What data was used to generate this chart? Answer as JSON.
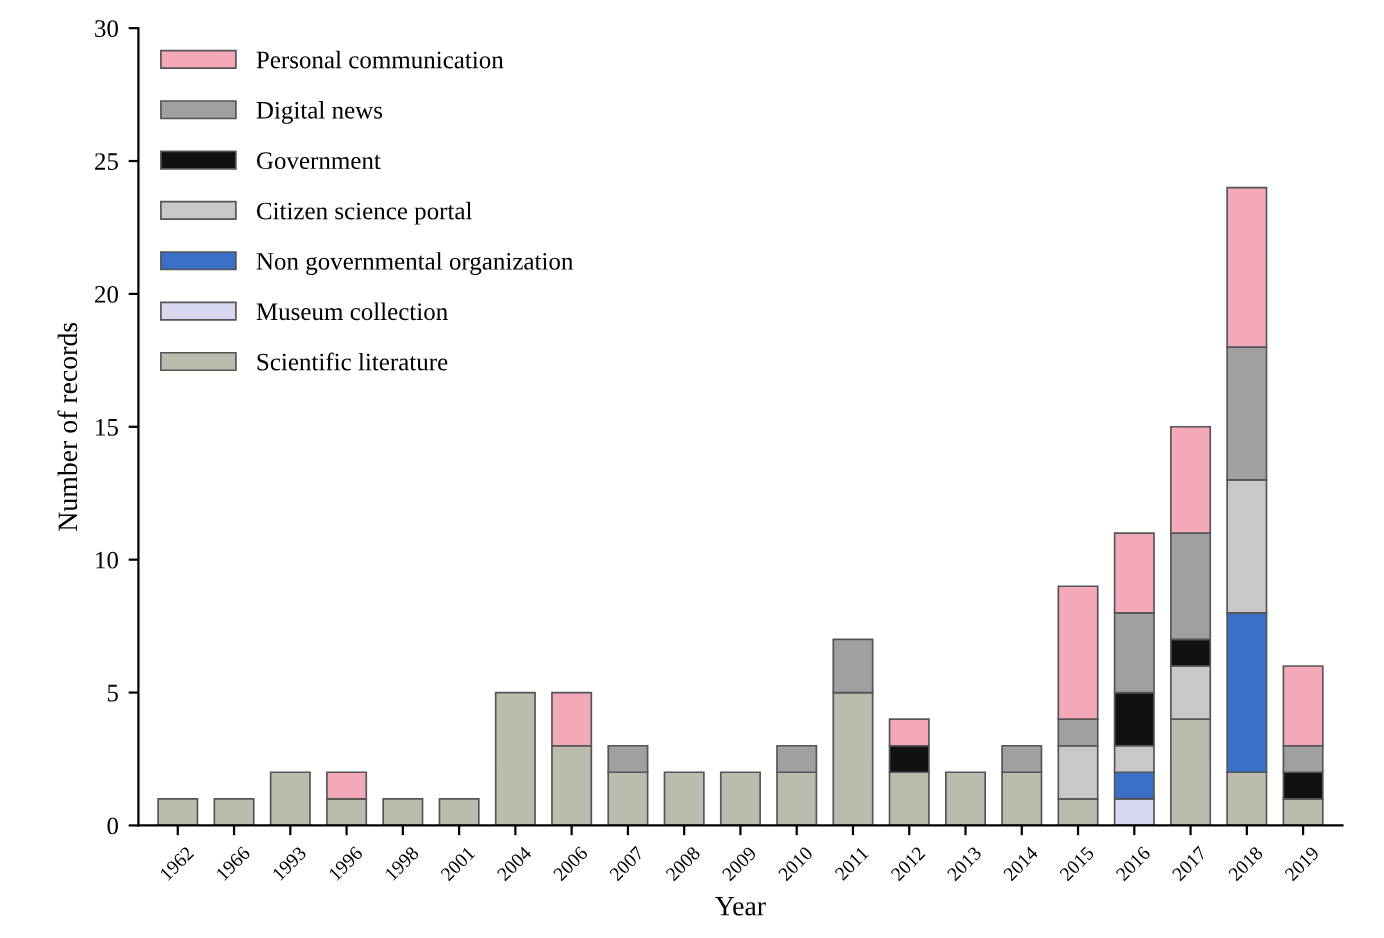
{
  "chart_data": {
    "type": "bar",
    "stacked": true,
    "xlabel": "Year",
    "ylabel": "Number of records",
    "categories": [
      "1962",
      "1966",
      "1993",
      "1996",
      "1998",
      "2001",
      "2004",
      "2006",
      "2007",
      "2008",
      "2009",
      "2010",
      "2011",
      "2012",
      "2013",
      "2014",
      "2015",
      "2016",
      "2017",
      "2018",
      "2019"
    ],
    "series": [
      {
        "name": "Scientific literature",
        "color": "#bcbcae",
        "values": [
          1,
          1,
          2,
          1,
          1,
          1,
          5,
          3,
          2,
          2,
          2,
          2,
          5,
          2,
          2,
          2,
          1,
          null,
          4,
          2,
          1
        ]
      },
      {
        "name": "Museum collection",
        "color": "#d8d8f0",
        "values": [
          null,
          null,
          null,
          null,
          null,
          null,
          null,
          null,
          null,
          null,
          null,
          null,
          null,
          null,
          null,
          null,
          null,
          1,
          null,
          null,
          null
        ]
      },
      {
        "name": "Non governmental organization",
        "color": "#3a6fc8",
        "values": [
          null,
          null,
          null,
          null,
          null,
          null,
          null,
          null,
          null,
          null,
          null,
          null,
          null,
          null,
          null,
          null,
          null,
          1,
          null,
          6,
          null
        ]
      },
      {
        "name": "Citizen science portal",
        "color": "#c8c8c8",
        "values": [
          null,
          null,
          null,
          null,
          null,
          null,
          null,
          null,
          null,
          null,
          null,
          null,
          null,
          null,
          null,
          null,
          2,
          1,
          2,
          5,
          null
        ]
      },
      {
        "name": "Government",
        "color": "#111111",
        "values": [
          null,
          null,
          null,
          null,
          null,
          null,
          null,
          null,
          null,
          null,
          null,
          null,
          null,
          1,
          null,
          null,
          null,
          2,
          1,
          null,
          1
        ]
      },
      {
        "name": "Digital news",
        "color": "#a0a0a0",
        "values": [
          null,
          null,
          null,
          null,
          null,
          null,
          null,
          null,
          1,
          null,
          null,
          1,
          2,
          null,
          null,
          1,
          1,
          3,
          4,
          5,
          1
        ]
      },
      {
        "name": "Personal communication",
        "color": "#f4a9b8",
        "values": [
          null,
          null,
          null,
          1,
          null,
          null,
          null,
          2,
          null,
          null,
          null,
          null,
          null,
          1,
          null,
          null,
          5,
          3,
          4,
          6,
          3
        ]
      }
    ],
    "ylim": [
      0,
      30
    ],
    "yticks": [
      0,
      5,
      10,
      15,
      20,
      25,
      30
    ],
    "grid": false,
    "legend": "top left"
  }
}
